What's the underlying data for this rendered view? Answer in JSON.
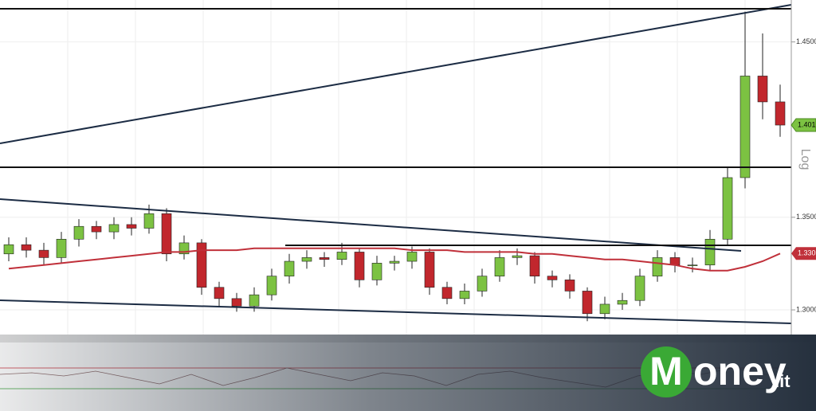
{
  "chart_data": {
    "type": "candlestick",
    "log_scale": true,
    "axis_label": "Log",
    "ylim": [
      1.287,
      1.475
    ],
    "yticks": [
      {
        "value": 1.3,
        "label": "1.3000"
      },
      {
        "value": 1.35,
        "label": "1.3500"
      },
      {
        "value": 1.45,
        "label": "1.4500"
      }
    ],
    "up_color": "#7cc242",
    "down_color": "#c1272d",
    "grid": true,
    "ohlc": [
      [
        1.33,
        1.339,
        1.326,
        1.335
      ],
      [
        1.335,
        1.339,
        1.328,
        1.332
      ],
      [
        1.332,
        1.336,
        1.324,
        1.328
      ],
      [
        1.328,
        1.342,
        1.325,
        1.338
      ],
      [
        1.338,
        1.349,
        1.334,
        1.345
      ],
      [
        1.345,
        1.348,
        1.338,
        1.342
      ],
      [
        1.342,
        1.35,
        1.338,
        1.346
      ],
      [
        1.346,
        1.35,
        1.34,
        1.344
      ],
      [
        1.344,
        1.357,
        1.341,
        1.352
      ],
      [
        1.352,
        1.355,
        1.326,
        1.33
      ],
      [
        1.33,
        1.34,
        1.327,
        1.336
      ],
      [
        1.336,
        1.338,
        1.308,
        1.312
      ],
      [
        1.312,
        1.315,
        1.302,
        1.306
      ],
      [
        1.306,
        1.309,
        1.299,
        1.302
      ],
      [
        1.302,
        1.312,
        1.299,
        1.308
      ],
      [
        1.308,
        1.322,
        1.305,
        1.318
      ],
      [
        1.318,
        1.33,
        1.314,
        1.326
      ],
      [
        1.326,
        1.332,
        1.322,
        1.328
      ],
      [
        1.328,
        1.331,
        1.323,
        1.327
      ],
      [
        1.327,
        1.336,
        1.324,
        1.331
      ],
      [
        1.331,
        1.333,
        1.312,
        1.316
      ],
      [
        1.316,
        1.329,
        1.313,
        1.325
      ],
      [
        1.325,
        1.329,
        1.321,
        1.326
      ],
      [
        1.326,
        1.334,
        1.322,
        1.331
      ],
      [
        1.331,
        1.333,
        1.308,
        1.312
      ],
      [
        1.312,
        1.315,
        1.303,
        1.306
      ],
      [
        1.306,
        1.314,
        1.303,
        1.31
      ],
      [
        1.31,
        1.322,
        1.307,
        1.318
      ],
      [
        1.318,
        1.332,
        1.315,
        1.328
      ],
      [
        1.328,
        1.333,
        1.324,
        1.329
      ],
      [
        1.329,
        1.331,
        1.314,
        1.318
      ],
      [
        1.318,
        1.321,
        1.312,
        1.316
      ],
      [
        1.316,
        1.319,
        1.306,
        1.31
      ],
      [
        1.31,
        1.312,
        1.294,
        1.298
      ],
      [
        1.298,
        1.307,
        1.295,
        1.303
      ],
      [
        1.303,
        1.309,
        1.3,
        1.305
      ],
      [
        1.305,
        1.322,
        1.302,
        1.318
      ],
      [
        1.318,
        1.332,
        1.315,
        1.328
      ],
      [
        1.328,
        1.331,
        1.32,
        1.324
      ],
      [
        1.324,
        1.328,
        1.32,
        1.324
      ],
      [
        1.324,
        1.343,
        1.321,
        1.338
      ],
      [
        1.338,
        1.378,
        1.335,
        1.372
      ],
      [
        1.372,
        1.468,
        1.366,
        1.43
      ],
      [
        1.43,
        1.455,
        1.405,
        1.415
      ],
      [
        1.415,
        1.425,
        1.395,
        1.4017
      ]
    ],
    "moving_average": {
      "color": "#c0303a",
      "values": [
        1.322,
        1.323,
        1.324,
        1.325,
        1.326,
        1.327,
        1.328,
        1.329,
        1.33,
        1.331,
        1.331,
        1.332,
        1.332,
        1.332,
        1.333,
        1.333,
        1.333,
        1.333,
        1.333,
        1.333,
        1.333,
        1.333,
        1.333,
        1.332,
        1.332,
        1.332,
        1.331,
        1.331,
        1.331,
        1.331,
        1.33,
        1.33,
        1.329,
        1.328,
        1.327,
        1.327,
        1.326,
        1.325,
        1.324,
        1.322,
        1.321,
        1.321,
        1.323,
        1.326,
        1.3302
      ]
    }
  },
  "brand": {
    "initial": "M",
    "name": "oney",
    "suffix": ".it"
  }
}
